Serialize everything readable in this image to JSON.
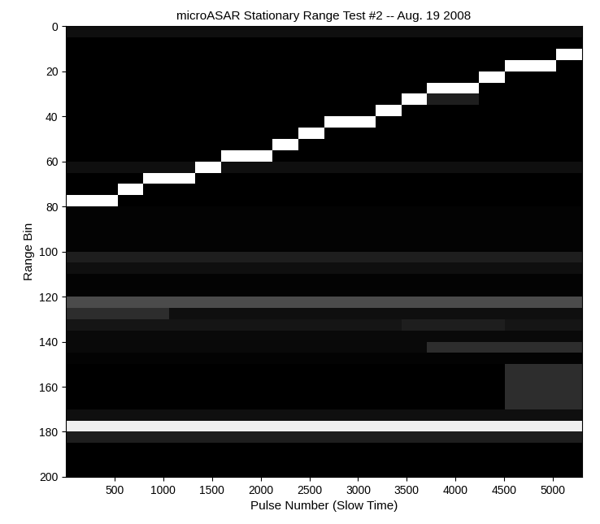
{
  "chart_data": {
    "type": "heatmap",
    "title": "microASAR Stationary Range Test #2 -- Aug. 19 2008",
    "x_label": "Pulse Number (Slow Time)",
    "y_label": "Range Bin",
    "color": "gray",
    "xlim": [
      0,
      5300
    ],
    "ylim": [
      200,
      0
    ],
    "xticks": [
      500,
      1000,
      1500,
      2000,
      2500,
      3000,
      3500,
      4000,
      4500,
      5000
    ],
    "yticks": [
      0,
      20,
      40,
      60,
      80,
      100,
      120,
      140,
      160,
      180,
      200
    ],
    "x_edges": [
      0,
      265,
      530,
      795,
      1060,
      1325,
      1590,
      1855,
      2120,
      2385,
      2650,
      2915,
      3180,
      3445,
      3710,
      3975,
      4240,
      4505,
      4770,
      5035,
      5300
    ],
    "y_edges": [
      0,
      5,
      10,
      15,
      20,
      25,
      30,
      35,
      40,
      45,
      50,
      55,
      60,
      65,
      70,
      75,
      80,
      85,
      90,
      95,
      100,
      105,
      110,
      115,
      120,
      125,
      130,
      135,
      140,
      145,
      150,
      155,
      160,
      165,
      170,
      175,
      180,
      185,
      190,
      195,
      200
    ],
    "cells": [
      [
        0.1,
        0.1,
        0.1,
        0.1,
        0.1,
        0.1,
        0.1,
        0.1,
        0.1,
        0.1,
        0.1,
        0.1,
        0.1,
        0.1,
        0.1,
        0.1,
        0.1,
        0.1,
        0.1,
        0.1
      ],
      [
        0.05,
        0.05,
        0.05,
        0.05,
        0.05,
        0.05,
        0.05,
        0.05,
        0.05,
        0.05,
        0.05,
        0.05,
        0.05,
        0.05,
        0.05,
        0.05,
        0.05,
        0.05,
        0.05,
        0.05
      ],
      [
        0.05,
        0.05,
        0.05,
        0.05,
        0.05,
        0.05,
        0.05,
        0.05,
        0.05,
        0.05,
        0.05,
        0.05,
        0.05,
        0.05,
        0.05,
        0.05,
        0.05,
        0.05,
        0.05,
        0.9
      ],
      [
        0.05,
        0.05,
        0.05,
        0.05,
        0.05,
        0.05,
        0.05,
        0.05,
        0.05,
        0.05,
        0.05,
        0.05,
        0.05,
        0.05,
        0.05,
        0.05,
        0.05,
        0.9,
        0.9,
        0.05
      ],
      [
        0.05,
        0.05,
        0.05,
        0.05,
        0.05,
        0.05,
        0.05,
        0.05,
        0.05,
        0.05,
        0.05,
        0.05,
        0.05,
        0.05,
        0.05,
        0.05,
        0.9,
        0.05,
        0.05,
        0.05
      ],
      [
        0.05,
        0.05,
        0.05,
        0.05,
        0.05,
        0.05,
        0.05,
        0.05,
        0.05,
        0.05,
        0.05,
        0.05,
        0.05,
        0.05,
        0.9,
        0.9,
        0.05,
        0.05,
        0.05,
        0.05
      ],
      [
        0.05,
        0.05,
        0.05,
        0.05,
        0.05,
        0.05,
        0.05,
        0.05,
        0.05,
        0.05,
        0.05,
        0.05,
        0.05,
        0.9,
        0.15,
        0.15,
        0.05,
        0.05,
        0.05,
        0.05
      ],
      [
        0.05,
        0.05,
        0.05,
        0.05,
        0.05,
        0.05,
        0.05,
        0.05,
        0.05,
        0.05,
        0.05,
        0.05,
        0.9,
        0.05,
        0.05,
        0.05,
        0.05,
        0.05,
        0.05,
        0.05
      ],
      [
        0.05,
        0.05,
        0.05,
        0.05,
        0.05,
        0.05,
        0.05,
        0.05,
        0.05,
        0.05,
        0.9,
        0.9,
        0.05,
        0.05,
        0.05,
        0.05,
        0.05,
        0.05,
        0.05,
        0.05
      ],
      [
        0.05,
        0.05,
        0.05,
        0.05,
        0.05,
        0.05,
        0.05,
        0.05,
        0.05,
        0.9,
        0.05,
        0.05,
        0.05,
        0.05,
        0.05,
        0.05,
        0.05,
        0.05,
        0.05,
        0.05
      ],
      [
        0.05,
        0.05,
        0.05,
        0.05,
        0.05,
        0.05,
        0.05,
        0.05,
        0.9,
        0.05,
        0.05,
        0.05,
        0.05,
        0.05,
        0.05,
        0.05,
        0.05,
        0.05,
        0.05,
        0.05
      ],
      [
        0.05,
        0.05,
        0.05,
        0.05,
        0.05,
        0.05,
        0.9,
        0.9,
        0.05,
        0.05,
        0.05,
        0.05,
        0.05,
        0.05,
        0.05,
        0.05,
        0.05,
        0.05,
        0.05,
        0.05
      ],
      [
        0.1,
        0.1,
        0.1,
        0.1,
        0.1,
        0.9,
        0.1,
        0.1,
        0.1,
        0.1,
        0.1,
        0.1,
        0.1,
        0.1,
        0.1,
        0.1,
        0.1,
        0.1,
        0.1,
        0.1
      ],
      [
        0.05,
        0.05,
        0.05,
        0.9,
        0.9,
        0.05,
        0.05,
        0.05,
        0.05,
        0.05,
        0.05,
        0.05,
        0.05,
        0.05,
        0.05,
        0.05,
        0.05,
        0.05,
        0.05,
        0.05
      ],
      [
        0.05,
        0.05,
        0.9,
        0.05,
        0.05,
        0.05,
        0.05,
        0.05,
        0.05,
        0.05,
        0.05,
        0.05,
        0.05,
        0.05,
        0.05,
        0.05,
        0.05,
        0.05,
        0.05,
        0.05
      ],
      [
        0.9,
        0.9,
        0.05,
        0.05,
        0.05,
        0.05,
        0.05,
        0.05,
        0.05,
        0.05,
        0.05,
        0.05,
        0.05,
        0.05,
        0.05,
        0.05,
        0.05,
        0.05,
        0.05,
        0.05
      ],
      [
        0.06,
        0.06,
        0.06,
        0.06,
        0.06,
        0.06,
        0.06,
        0.06,
        0.06,
        0.06,
        0.06,
        0.06,
        0.06,
        0.06,
        0.06,
        0.06,
        0.06,
        0.06,
        0.06,
        0.06
      ],
      [
        0.06,
        0.06,
        0.06,
        0.06,
        0.06,
        0.06,
        0.06,
        0.06,
        0.06,
        0.06,
        0.06,
        0.06,
        0.06,
        0.06,
        0.06,
        0.06,
        0.06,
        0.06,
        0.06,
        0.06
      ],
      [
        0.06,
        0.06,
        0.06,
        0.06,
        0.06,
        0.06,
        0.06,
        0.06,
        0.06,
        0.06,
        0.06,
        0.06,
        0.06,
        0.06,
        0.06,
        0.06,
        0.06,
        0.06,
        0.06,
        0.06
      ],
      [
        0.06,
        0.06,
        0.06,
        0.06,
        0.06,
        0.06,
        0.06,
        0.06,
        0.06,
        0.06,
        0.06,
        0.06,
        0.06,
        0.06,
        0.06,
        0.06,
        0.06,
        0.06,
        0.06,
        0.06
      ],
      [
        0.15,
        0.15,
        0.15,
        0.15,
        0.15,
        0.15,
        0.15,
        0.15,
        0.15,
        0.15,
        0.15,
        0.15,
        0.15,
        0.15,
        0.15,
        0.15,
        0.15,
        0.15,
        0.15,
        0.15
      ],
      [
        0.1,
        0.1,
        0.1,
        0.1,
        0.1,
        0.1,
        0.1,
        0.1,
        0.1,
        0.1,
        0.1,
        0.1,
        0.1,
        0.1,
        0.1,
        0.1,
        0.1,
        0.1,
        0.1,
        0.1
      ],
      [
        0.06,
        0.06,
        0.06,
        0.06,
        0.06,
        0.06,
        0.06,
        0.06,
        0.06,
        0.06,
        0.06,
        0.06,
        0.06,
        0.06,
        0.06,
        0.06,
        0.06,
        0.06,
        0.06,
        0.06
      ],
      [
        0.06,
        0.06,
        0.06,
        0.06,
        0.06,
        0.06,
        0.06,
        0.06,
        0.06,
        0.06,
        0.06,
        0.06,
        0.06,
        0.06,
        0.06,
        0.06,
        0.06,
        0.06,
        0.06,
        0.06
      ],
      [
        0.3,
        0.3,
        0.3,
        0.3,
        0.3,
        0.3,
        0.3,
        0.3,
        0.3,
        0.3,
        0.3,
        0.3,
        0.3,
        0.3,
        0.3,
        0.3,
        0.3,
        0.3,
        0.3,
        0.3
      ],
      [
        0.2,
        0.2,
        0.2,
        0.2,
        0.1,
        0.1,
        0.1,
        0.1,
        0.1,
        0.1,
        0.1,
        0.1,
        0.1,
        0.1,
        0.1,
        0.1,
        0.1,
        0.1,
        0.1,
        0.1
      ],
      [
        0.12,
        0.12,
        0.12,
        0.12,
        0.12,
        0.12,
        0.12,
        0.12,
        0.12,
        0.12,
        0.12,
        0.12,
        0.12,
        0.15,
        0.15,
        0.15,
        0.15,
        0.12,
        0.12,
        0.12
      ],
      [
        0.08,
        0.08,
        0.08,
        0.08,
        0.08,
        0.08,
        0.08,
        0.08,
        0.08,
        0.08,
        0.08,
        0.08,
        0.08,
        0.08,
        0.08,
        0.08,
        0.08,
        0.08,
        0.08,
        0.08
      ],
      [
        0.08,
        0.08,
        0.08,
        0.08,
        0.08,
        0.08,
        0.08,
        0.08,
        0.08,
        0.08,
        0.08,
        0.08,
        0.08,
        0.08,
        0.2,
        0.2,
        0.2,
        0.2,
        0.2,
        0.2
      ],
      [
        0.06,
        0.06,
        0.06,
        0.06,
        0.06,
        0.06,
        0.06,
        0.06,
        0.06,
        0.06,
        0.06,
        0.06,
        0.06,
        0.06,
        0.06,
        0.06,
        0.06,
        0.06,
        0.06,
        0.06
      ],
      [
        0.05,
        0.05,
        0.05,
        0.05,
        0.05,
        0.05,
        0.05,
        0.05,
        0.05,
        0.05,
        0.05,
        0.05,
        0.05,
        0.05,
        0.05,
        0.05,
        0.05,
        0.2,
        0.2,
        0.2
      ],
      [
        0.05,
        0.05,
        0.05,
        0.05,
        0.05,
        0.05,
        0.05,
        0.05,
        0.05,
        0.05,
        0.05,
        0.05,
        0.05,
        0.05,
        0.05,
        0.05,
        0.05,
        0.2,
        0.2,
        0.2
      ],
      [
        0.05,
        0.05,
        0.05,
        0.05,
        0.05,
        0.05,
        0.05,
        0.05,
        0.05,
        0.05,
        0.05,
        0.05,
        0.05,
        0.05,
        0.05,
        0.05,
        0.05,
        0.2,
        0.2,
        0.2
      ],
      [
        0.05,
        0.05,
        0.05,
        0.05,
        0.05,
        0.05,
        0.05,
        0.05,
        0.05,
        0.05,
        0.05,
        0.05,
        0.05,
        0.05,
        0.05,
        0.05,
        0.05,
        0.2,
        0.2,
        0.2
      ],
      [
        0.1,
        0.1,
        0.1,
        0.1,
        0.1,
        0.1,
        0.1,
        0.1,
        0.1,
        0.1,
        0.1,
        0.1,
        0.1,
        0.1,
        0.1,
        0.1,
        0.1,
        0.1,
        0.1,
        0.1
      ],
      [
        0.85,
        0.85,
        0.85,
        0.85,
        0.85,
        0.85,
        0.85,
        0.85,
        0.85,
        0.85,
        0.85,
        0.85,
        0.85,
        0.85,
        0.85,
        0.85,
        0.85,
        0.85,
        0.85,
        0.85
      ],
      [
        0.15,
        0.15,
        0.15,
        0.15,
        0.15,
        0.15,
        0.15,
        0.15,
        0.15,
        0.15,
        0.15,
        0.15,
        0.15,
        0.15,
        0.15,
        0.15,
        0.15,
        0.15,
        0.15,
        0.15
      ],
      [
        0.05,
        0.05,
        0.05,
        0.05,
        0.05,
        0.05,
        0.05,
        0.05,
        0.05,
        0.05,
        0.05,
        0.05,
        0.05,
        0.05,
        0.05,
        0.05,
        0.05,
        0.05,
        0.05,
        0.05
      ],
      [
        0.05,
        0.05,
        0.05,
        0.05,
        0.05,
        0.05,
        0.05,
        0.05,
        0.05,
        0.05,
        0.05,
        0.05,
        0.05,
        0.05,
        0.05,
        0.05,
        0.05,
        0.05,
        0.05,
        0.05
      ],
      [
        0.05,
        0.05,
        0.05,
        0.05,
        0.05,
        0.05,
        0.05,
        0.05,
        0.05,
        0.05,
        0.05,
        0.05,
        0.05,
        0.05,
        0.05,
        0.05,
        0.05,
        0.05,
        0.05,
        0.05
      ]
    ]
  }
}
